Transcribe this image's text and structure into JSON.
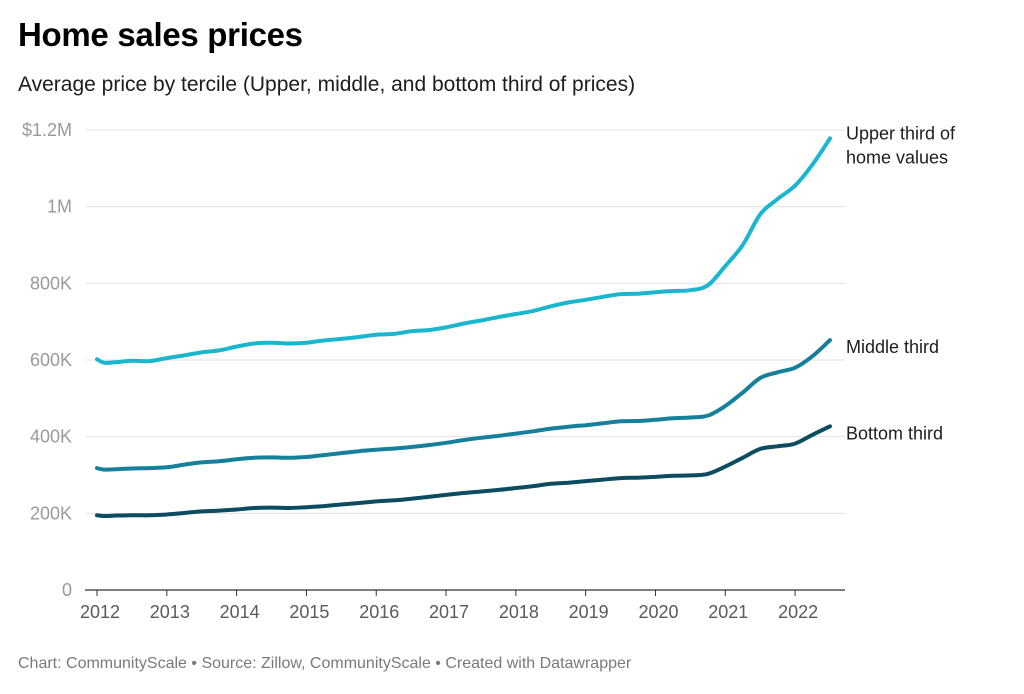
{
  "chart_data": {
    "type": "line",
    "title": "Home sales prices",
    "subtitle": "Average price by tercile (Upper, middle, and bottom third of prices)",
    "xlabel": "",
    "ylabel": "",
    "xlim": [
      2012,
      2022.5
    ],
    "ylim": [
      0,
      1200000
    ],
    "grid": true,
    "legend": "direct labels at line ends (right)",
    "y_ticks": [
      {
        "value": 0,
        "label": "0"
      },
      {
        "value": 200000,
        "label": "200K"
      },
      {
        "value": 400000,
        "label": "400K"
      },
      {
        "value": 600000,
        "label": "600K"
      },
      {
        "value": 800000,
        "label": "800K"
      },
      {
        "value": 1000000,
        "label": "1M"
      },
      {
        "value": 1200000,
        "label": "$1.2M"
      }
    ],
    "x_ticks": [
      {
        "value": 2012,
        "label": "2012"
      },
      {
        "value": 2013,
        "label": "2013"
      },
      {
        "value": 2014,
        "label": "2014"
      },
      {
        "value": 2015,
        "label": "2015"
      },
      {
        "value": 2016,
        "label": "2016"
      },
      {
        "value": 2017,
        "label": "2017"
      },
      {
        "value": 2018,
        "label": "2018"
      },
      {
        "value": 2019,
        "label": "2019"
      },
      {
        "value": 2020,
        "label": "2020"
      },
      {
        "value": 2021,
        "label": "2021"
      },
      {
        "value": 2022,
        "label": "2022"
      }
    ],
    "x": [
      2012.0,
      2012.1,
      2012.25,
      2012.5,
      2012.75,
      2013.0,
      2013.25,
      2013.5,
      2013.75,
      2014.0,
      2014.25,
      2014.5,
      2014.75,
      2015.0,
      2015.25,
      2015.5,
      2015.75,
      2016.0,
      2016.25,
      2016.5,
      2016.75,
      2017.0,
      2017.25,
      2017.5,
      2017.75,
      2018.0,
      2018.25,
      2018.5,
      2018.75,
      2019.0,
      2019.25,
      2019.5,
      2019.75,
      2020.0,
      2020.25,
      2020.5,
      2020.75,
      2021.0,
      2021.25,
      2021.5,
      2021.75,
      2022.0,
      2022.25,
      2022.5
    ],
    "series": [
      {
        "name": "Upper third of home values",
        "label_lines": [
          "Upper third of",
          "home values"
        ],
        "color": "#1ab6cf",
        "values": [
          602000,
          593000,
          594000,
          598000,
          597000,
          605000,
          612000,
          620000,
          625000,
          635000,
          643000,
          645000,
          643000,
          645000,
          651000,
          655000,
          660000,
          666000,
          668000,
          675000,
          678000,
          685000,
          695000,
          703000,
          712000,
          720000,
          728000,
          740000,
          750000,
          757000,
          765000,
          772000,
          773000,
          777000,
          780000,
          782000,
          795000,
          845000,
          900000,
          980000,
          1020000,
          1055000,
          1110000,
          1178000
        ]
      },
      {
        "name": "Middle third",
        "label_lines": [
          "Middle third"
        ],
        "color": "#14809b",
        "values": [
          318000,
          314000,
          315000,
          317000,
          318000,
          320000,
          327000,
          333000,
          336000,
          341000,
          345000,
          346000,
          345000,
          347000,
          352000,
          357000,
          362000,
          366000,
          369000,
          373000,
          378000,
          384000,
          391000,
          397000,
          402000,
          408000,
          414000,
          421000,
          426000,
          430000,
          435000,
          440000,
          441000,
          444000,
          448000,
          450000,
          455000,
          480000,
          515000,
          553000,
          568000,
          580000,
          610000,
          652000
        ]
      },
      {
        "name": "Bottom third",
        "label_lines": [
          "Bottom third"
        ],
        "color": "#0b4c5f",
        "values": [
          195000,
          193000,
          194000,
          195000,
          195000,
          197000,
          201000,
          205000,
          207000,
          210000,
          214000,
          215000,
          214000,
          216000,
          219000,
          223000,
          227000,
          231000,
          234000,
          238000,
          243000,
          248000,
          253000,
          257000,
          261000,
          266000,
          271000,
          277000,
          280000,
          284000,
          288000,
          292000,
          293000,
          295000,
          298000,
          299000,
          303000,
          322000,
          345000,
          368000,
          375000,
          382000,
          405000,
          427000
        ]
      }
    ]
  },
  "footer": "Chart: CommunityScale • Source: Zillow, CommunityScale • Created with Datawrapper"
}
